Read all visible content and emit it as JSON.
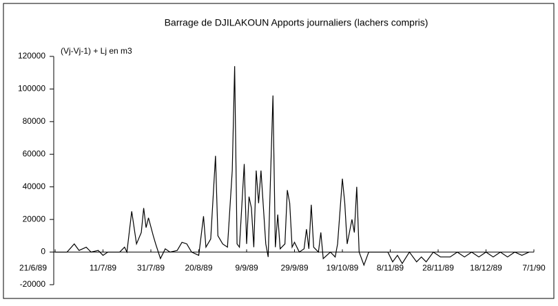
{
  "chart_data": {
    "type": "line",
    "title": "Barrage de DJILAKOUN    Apports journaliers (lachers compris)",
    "y_label": "(Vj-Vj-1) + Lj en m3",
    "color": "#000000",
    "x": [
      "21/6/89",
      "26/6/89",
      "29/6/89",
      "1/7/89",
      "4/7/89",
      "6/7/89",
      "9/7/89",
      "11/7/89",
      "13/7/89",
      "18/7/89",
      "20/7/89",
      "21/7/89",
      "23/7/89",
      "25/7/89",
      "27/7/89",
      "28/7/89",
      "29/7/89",
      "30/7/89",
      "1/8/89",
      "2/8/89",
      "4/8/89",
      "6/8/89",
      "8/8/89",
      "11/8/89",
      "13/8/89",
      "15/8/89",
      "17/8/89",
      "20/8/89",
      "22/8/89",
      "23/8/89",
      "25/8/89",
      "27/8/89",
      "28/8/89",
      "30/8/89",
      "1/9/89",
      "3/9/89",
      "4/9/89",
      "5/9/89",
      "6/9/89",
      "8/9/89",
      "9/9/89",
      "10/9/89",
      "11/9/89",
      "12/9/89",
      "13/9/89",
      "14/9/89",
      "15/9/89",
      "17/9/89",
      "18/9/89",
      "20/9/89",
      "21/9/89",
      "22/9/89",
      "23/9/89",
      "25/9/89",
      "26/9/89",
      "27/9/89",
      "28/9/89",
      "29/9/89",
      "1/10/89",
      "3/10/89",
      "4/10/89",
      "5/10/89",
      "6/10/89",
      "7/10/89",
      "9/10/89",
      "10/10/89",
      "11/10/89",
      "14/10/89",
      "16/10/89",
      "17/10/89",
      "19/10/89",
      "20/10/89",
      "21/10/89",
      "23/10/89",
      "24/10/89",
      "25/10/89",
      "26/10/89",
      "28/10/89",
      "30/10/89",
      "7/11/89",
      "9/11/89",
      "11/11/89",
      "13/11/89",
      "16/11/89",
      "19/11/89",
      "21/11/89",
      "23/11/89",
      "26/11/89",
      "29/11/89",
      "3/12/89",
      "6/12/89",
      "9/12/89",
      "12/12/89",
      "15/12/89",
      "18/12/89",
      "21/12/89",
      "24/12/89",
      "27/12/89",
      "30/12/89",
      "2/1/90",
      "5/1/90"
    ],
    "values": [
      0,
      0,
      5000,
      1000,
      3000,
      0,
      1000,
      -2000,
      0,
      0,
      3000,
      0,
      25000,
      5000,
      12000,
      27000,
      15000,
      21000,
      10000,
      5000,
      -4000,
      2000,
      0,
      1000,
      6000,
      5000,
      0,
      -2000,
      22000,
      3000,
      8000,
      59000,
      10000,
      5000,
      3000,
      50000,
      114000,
      5000,
      3000,
      54000,
      5000,
      34000,
      27000,
      3000,
      50000,
      30000,
      50000,
      5000,
      -3000,
      96000,
      3000,
      23000,
      2000,
      5000,
      38000,
      30000,
      3000,
      6000,
      0,
      2000,
      14000,
      2000,
      29000,
      3000,
      0,
      12000,
      -4000,
      0,
      -3000,
      5000,
      45000,
      30000,
      5000,
      20000,
      12000,
      40000,
      0,
      -8000,
      0,
      0,
      -6000,
      -2000,
      -7000,
      0,
      -6000,
      -3000,
      -6000,
      0,
      -3000,
      -3000,
      0,
      -3000,
      0,
      -3000,
      0,
      -3000,
      0,
      -3000,
      0,
      -2000,
      0
    ],
    "xlim": [
      "21/6/89",
      "7/1/90"
    ],
    "xticks": [
      "21/6/89",
      "11/7/89",
      "31/7/89",
      "20/8/89",
      "9/9/89",
      "29/9/89",
      "19/10/89",
      "8/11/89",
      "28/11/89",
      "18/12/89",
      "7/1/90"
    ],
    "ylim": [
      -20000,
      120000
    ],
    "yticks": [
      -20000,
      0,
      20000,
      40000,
      60000,
      80000,
      100000,
      120000
    ],
    "grid": false
  }
}
